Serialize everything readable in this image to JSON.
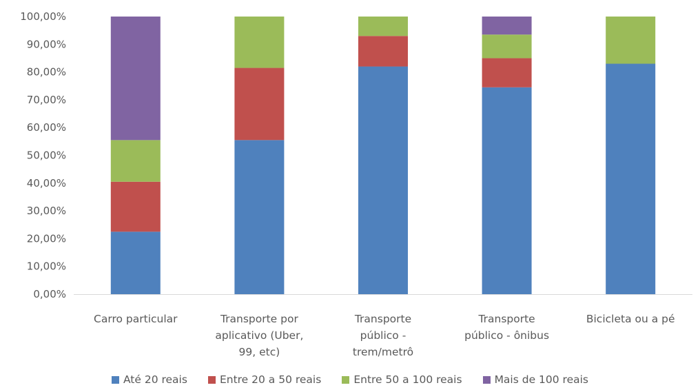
{
  "chart_data": {
    "type": "bar",
    "stacked": true,
    "categories": [
      [
        "Carro particular"
      ],
      [
        "Transporte por",
        "aplicativo (Uber,",
        "99, etc)"
      ],
      [
        "Transporte",
        "público -",
        "trem/metrô"
      ],
      [
        "Transporte",
        "público - ônibus"
      ],
      [
        "Bicicleta ou a pé"
      ]
    ],
    "series": [
      {
        "name": "Até 20 reais",
        "color": "#4f81bd",
        "values": [
          22.5,
          55.5,
          82.0,
          74.5,
          83.0
        ]
      },
      {
        "name": "Entre 20 a 50 reais",
        "color": "#c0504d",
        "values": [
          18.0,
          26.0,
          11.0,
          10.5,
          0
        ]
      },
      {
        "name": "Entre 50 a 100 reais",
        "color": "#9bbb59",
        "values": [
          15.0,
          18.5,
          7.0,
          8.5,
          17.0
        ]
      },
      {
        "name": "Mais de 100 reais",
        "color": "#8064a2",
        "values": [
          44.5,
          0,
          0,
          6.5,
          0
        ]
      }
    ],
    "ylim": [
      0,
      100
    ],
    "yticks": [
      "0,00%",
      "10,00%",
      "20,00%",
      "30,00%",
      "40,00%",
      "50,00%",
      "60,00%",
      "70,00%",
      "80,00%",
      "90,00%",
      "100,00%"
    ],
    "grid": false,
    "legend_position": "bottom"
  }
}
